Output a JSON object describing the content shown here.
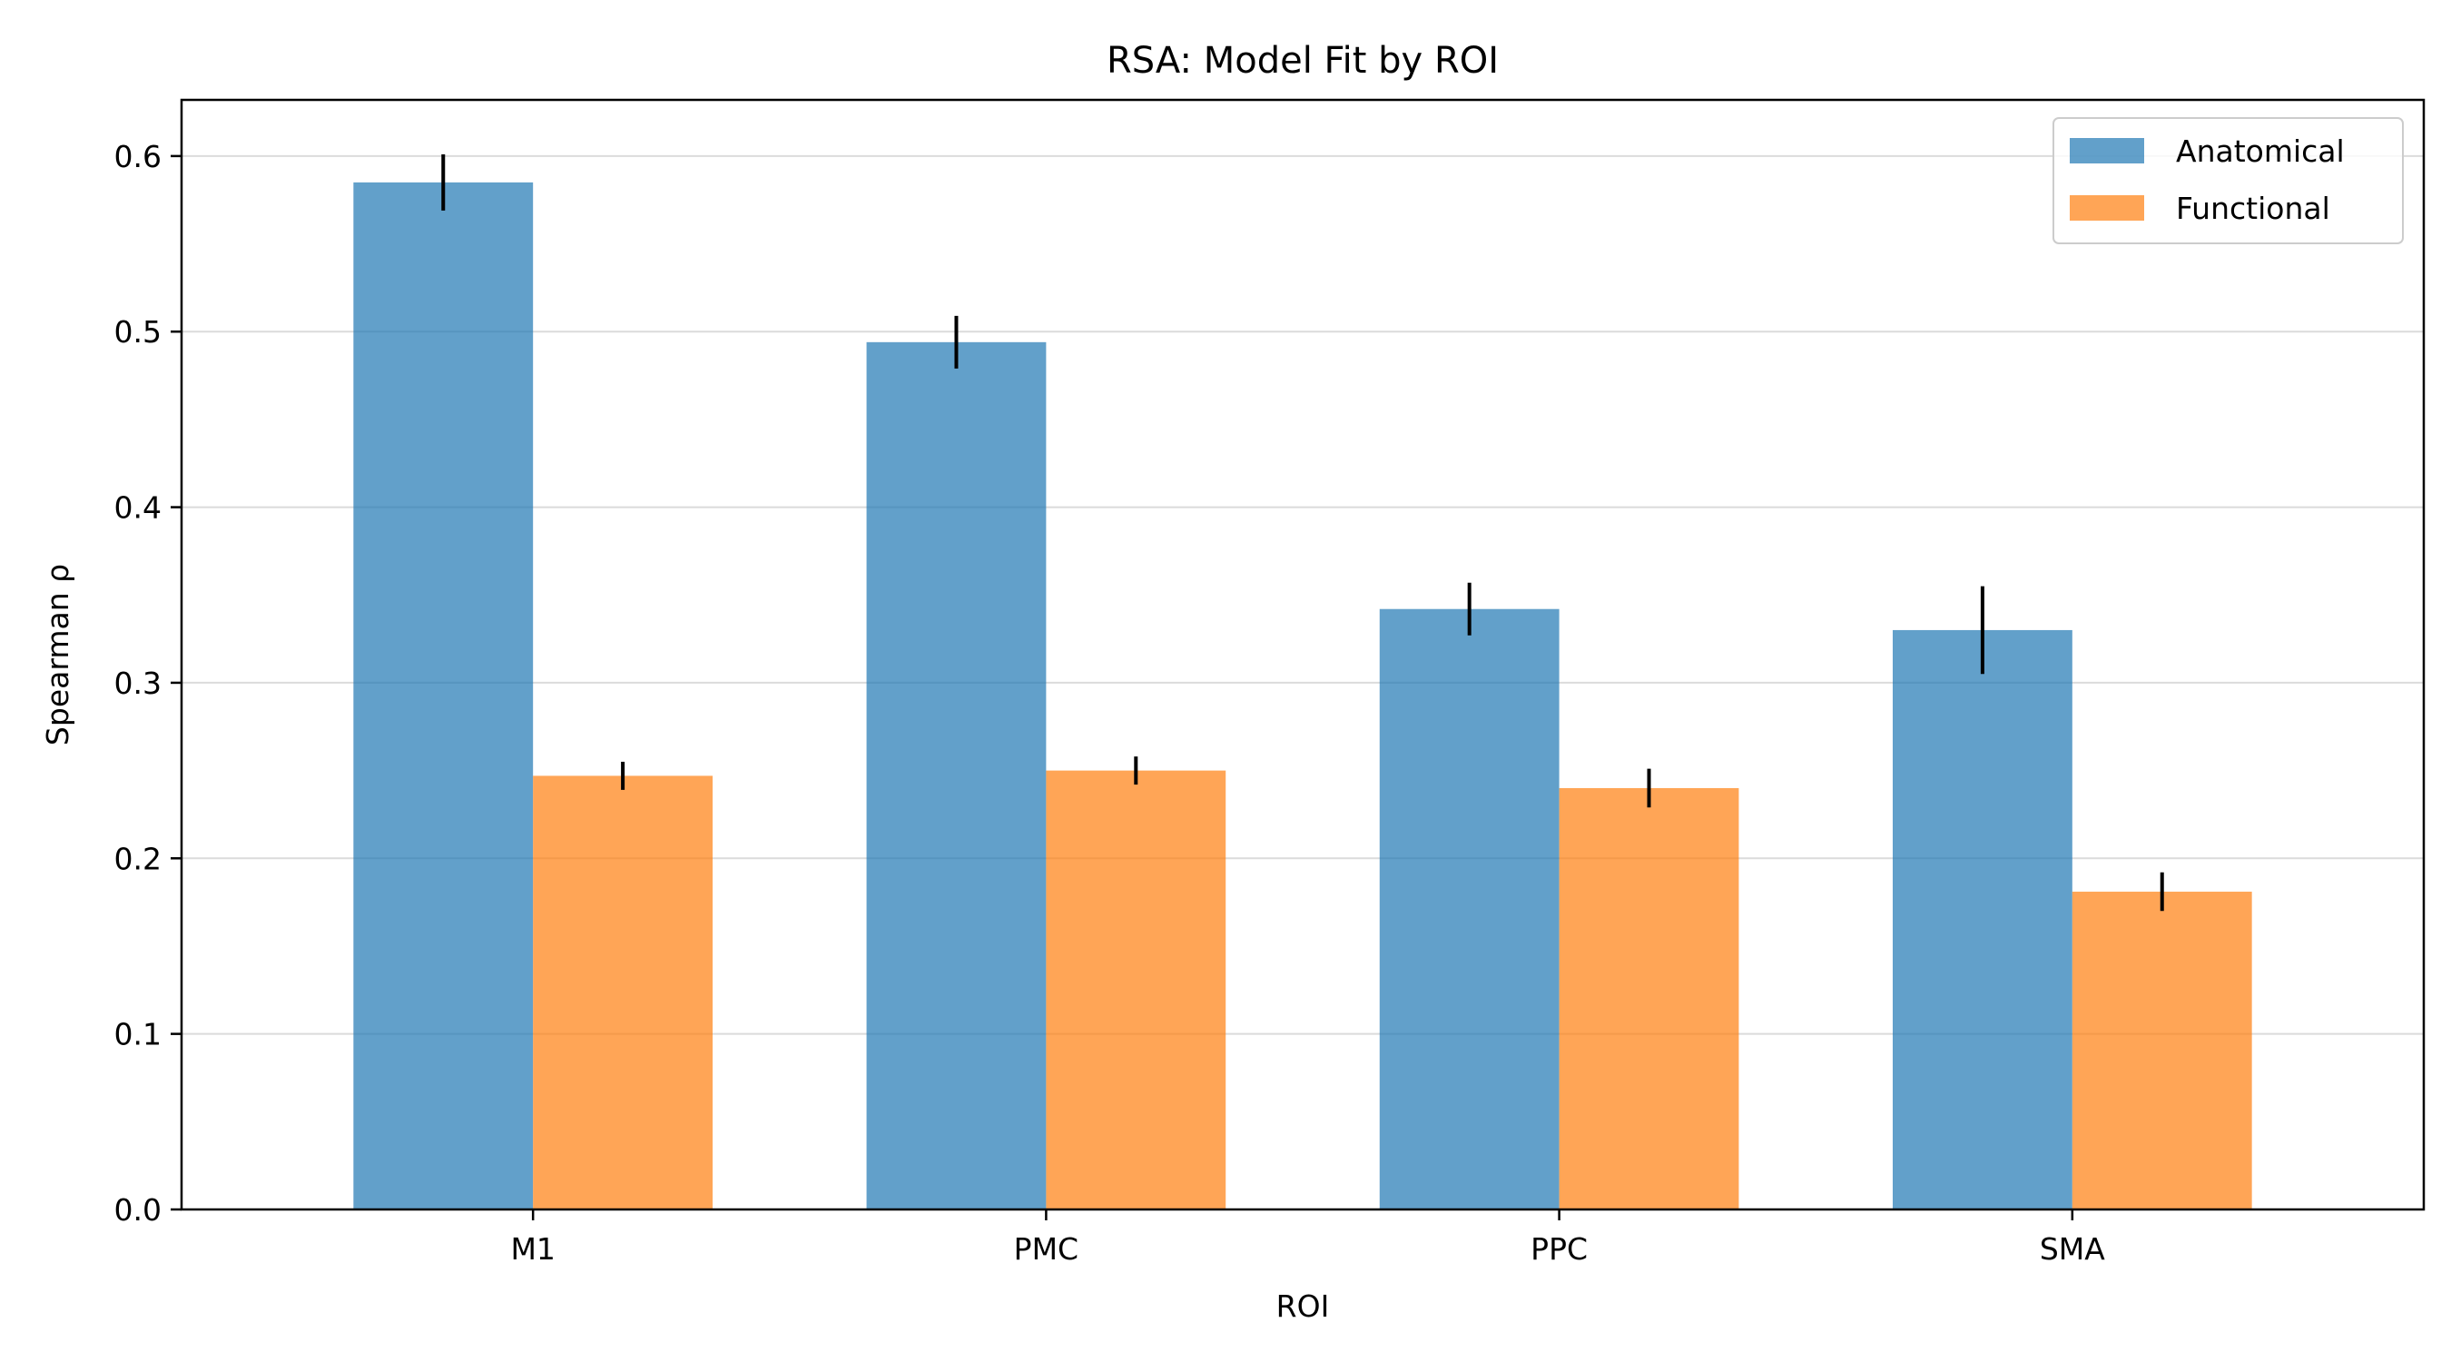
{
  "chart_data": {
    "type": "bar",
    "title": "RSA: Model Fit by ROI",
    "xlabel": "ROI",
    "ylabel": "Spearman ρ",
    "categories": [
      "M1",
      "PMC",
      "PPC",
      "SMA"
    ],
    "series": [
      {
        "name": "Anatomical",
        "color": "#1f77b4",
        "values": [
          0.585,
          0.494,
          0.342,
          0.33
        ],
        "errors": [
          0.016,
          0.015,
          0.015,
          0.025
        ]
      },
      {
        "name": "Functional",
        "color": "#ff7f0e",
        "values": [
          0.247,
          0.25,
          0.24,
          0.181
        ],
        "errors": [
          0.008,
          0.008,
          0.011,
          0.011
        ]
      }
    ],
    "ylim": [
      0,
      0.632
    ],
    "yticks": [
      "0.0",
      "0.1",
      "0.2",
      "0.3",
      "0.4",
      "0.5",
      "0.6"
    ],
    "grid": "horizontal",
    "legend_position": "top-right",
    "bar_opacity": 0.7
  }
}
